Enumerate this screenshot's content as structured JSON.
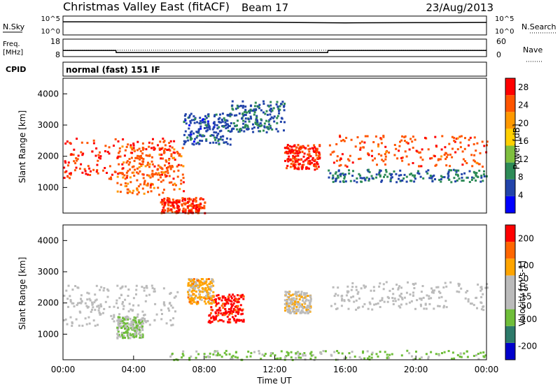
{
  "header": {
    "station": "Christmas Valley East (fitACF)",
    "beam": "Beam 17",
    "date": "23/Aug/2013"
  },
  "aux_panels": {
    "nsky_label": "N.Sky",
    "nsearch_label": "N.Search",
    "noise_ticks": [
      "10^5",
      "10^0"
    ],
    "freq_label": [
      "Freq.",
      "[MHz]"
    ],
    "freq_ticks": [
      "18",
      "8"
    ],
    "nave_label": "Nave",
    "nave_ticks": [
      "60",
      "0"
    ],
    "cpid_label": "CPID",
    "cpid_text": "normal (fast) 151 IF"
  },
  "x_axis": {
    "title": "Time UT",
    "ticks": [
      "00:00",
      "04:00",
      "08:00",
      "12:00",
      "16:00",
      "20:00",
      "00:00"
    ]
  },
  "colors": {
    "power": [
      "#0000ff",
      "#2244aa",
      "#2e8b57",
      "#7fbf3f",
      "#ffd000",
      "#ff9900",
      "#ff5500",
      "#ff0000"
    ],
    "velocity": [
      "#0000cc",
      "#2d7a6a",
      "#6fbe3a",
      "#bbbbbb",
      "#bbbbbb",
      "#ffa500",
      "#ff6600",
      "#ff0000"
    ]
  },
  "chart_data": [
    {
      "type": "line",
      "title": "N.Sky / N.Search",
      "x": [
        "00:00",
        "04:00",
        "08:00",
        "12:00",
        "16:00",
        "20:00",
        "24:00"
      ],
      "series": [
        {
          "name": "N.Sky",
          "values": [
            3000,
            2800,
            2500,
            2200,
            1600,
            1800,
            2000
          ]
        },
        {
          "name": "N.Search",
          "values": [
            0,
            0,
            0,
            0,
            0,
            0,
            0
          ]
        }
      ],
      "ylim": [
        1,
        100000
      ],
      "yscale": "log"
    },
    {
      "type": "line",
      "title": "Freq. / Nave",
      "x": [
        "00:00",
        "03:00",
        "03:01",
        "14:30",
        "15:00",
        "15:01",
        "24:00"
      ],
      "series": [
        {
          "name": "Freq. [MHz]",
          "values": [
            11.5,
            11.5,
            10.3,
            10.3,
            10.3,
            11.5,
            11.5
          ]
        },
        {
          "name": "Nave",
          "values": [
            22,
            22,
            22,
            22,
            22,
            22,
            22
          ]
        }
      ],
      "ylim": [
        8,
        18
      ]
    },
    {
      "type": "heatmap",
      "title": "Power",
      "xlabel": "Time UT",
      "ylabel": "Slant Range [km]",
      "colorbar_label": "Power [dB]",
      "xlim": [
        0,
        24
      ],
      "ylim": [
        180,
        4500
      ],
      "yticks": [
        1000,
        2000,
        3000,
        4000
      ],
      "colorbar_ticks": [
        4,
        8,
        12,
        16,
        20,
        24,
        28
      ],
      "colorbar_range": [
        0,
        30
      ],
      "bands": [
        {
          "t": [
            0,
            6.5
          ],
          "r": [
            1300,
            2600
          ],
          "value": 26
        },
        {
          "t": [
            3,
            6.8
          ],
          "r": [
            800,
            2400
          ],
          "value": 24
        },
        {
          "t": [
            6.8,
            9.5
          ],
          "r": [
            2400,
            3400
          ],
          "value": 6
        },
        {
          "t": [
            9.5,
            12.5
          ],
          "r": [
            2800,
            3800
          ],
          "value": 7
        },
        {
          "t": [
            12.5,
            14.5
          ],
          "r": [
            1600,
            2400
          ],
          "value": 27
        },
        {
          "t": [
            15,
            24
          ],
          "r": [
            1700,
            2700
          ],
          "value": 25
        },
        {
          "t": [
            15,
            24
          ],
          "r": [
            1200,
            1600
          ],
          "value": 8
        },
        {
          "t": [
            5.5,
            8
          ],
          "r": [
            200,
            700
          ],
          "value": 26
        }
      ]
    },
    {
      "type": "heatmap",
      "title": "Velocity",
      "xlabel": "Time UT",
      "ylabel": "Slant Range [km]",
      "colorbar_label": "Velocity [m s-1]",
      "xlim": [
        0,
        24
      ],
      "ylim": [
        180,
        4500
      ],
      "yticks": [
        1000,
        2000,
        3000,
        4000
      ],
      "colorbar_ticks": [
        -200,
        -100,
        -50,
        -15,
        15,
        50,
        100,
        200
      ],
      "colorbar_range": [
        -250,
        250
      ],
      "bands": [
        {
          "t": [
            0,
            6.5
          ],
          "r": [
            1300,
            2600
          ],
          "value": 0
        },
        {
          "t": [
            3,
            4.5
          ],
          "r": [
            900,
            1600
          ],
          "value": -60
        },
        {
          "t": [
            8.2,
            10.2
          ],
          "r": [
            1400,
            2300
          ],
          "value": 220
        },
        {
          "t": [
            7,
            8.5
          ],
          "r": [
            2000,
            2800
          ],
          "value": 90
        },
        {
          "t": [
            12.5,
            14
          ],
          "r": [
            1700,
            2400
          ],
          "value": 40
        },
        {
          "t": [
            15,
            24
          ],
          "r": [
            1800,
            2700
          ],
          "value": 0
        },
        {
          "t": [
            6,
            24
          ],
          "r": [
            200,
            500
          ],
          "value": -80
        }
      ]
    }
  ]
}
